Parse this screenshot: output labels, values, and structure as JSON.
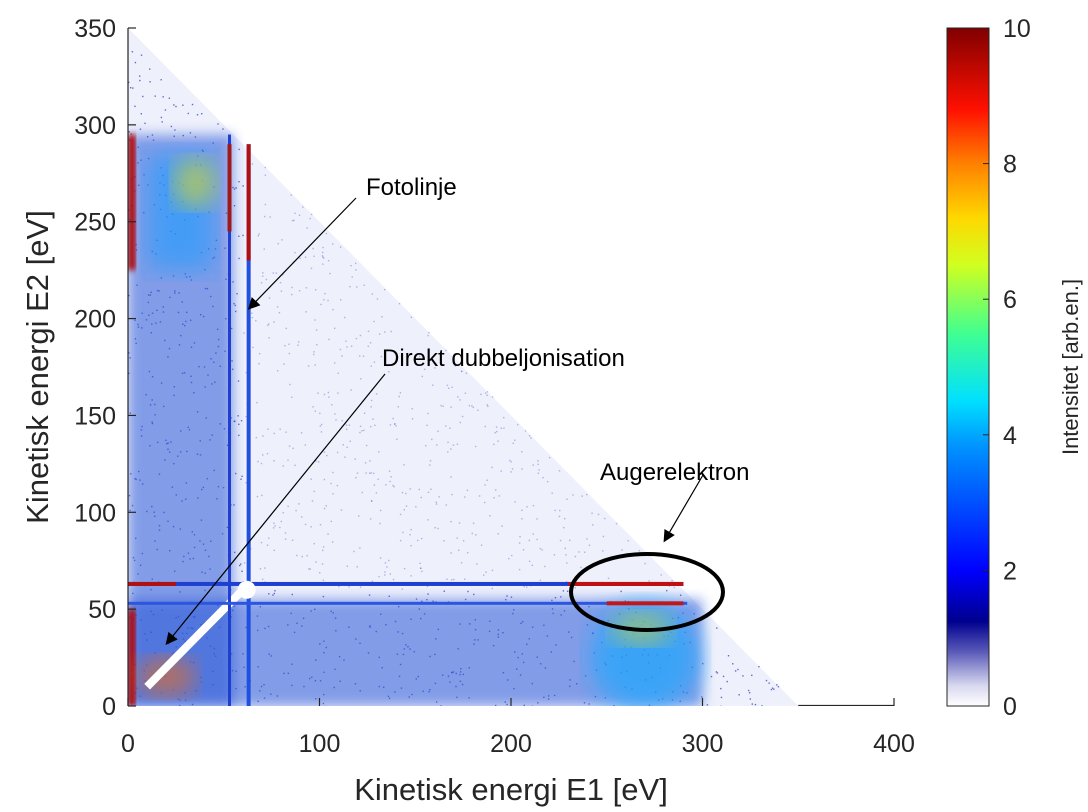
{
  "chart_data": {
    "type": "heatmap",
    "title": "",
    "xlabel": "Kinetisk energi E1 [eV]",
    "ylabel": "Kinetisk energi E2 [eV]",
    "xlim": [
      0,
      400
    ],
    "ylim": [
      0,
      350
    ],
    "x_ticks": [
      0,
      100,
      200,
      300,
      400
    ],
    "y_ticks": [
      0,
      50,
      100,
      150,
      200,
      250,
      300,
      350
    ],
    "grid": false,
    "colorbar": {
      "label": "Intensitet [arb.en.]",
      "range": [
        0,
        10
      ],
      "ticks": [
        0,
        2,
        4,
        6,
        8,
        10
      ],
      "colormap": "jet"
    },
    "features": {
      "diagonal_cutoff_sum_eV": 350,
      "photoline_E1_eV": [
        53,
        63
      ],
      "photoline_E2_eV": [
        53,
        63
      ],
      "auger_E_eV": [
        240,
        300
      ]
    },
    "annotations": [
      {
        "text": "Fotolinje",
        "points_to": [
          63,
          205
        ]
      },
      {
        "text": "Direkt dubbeljonisation",
        "points_to": [
          20,
          32
        ]
      },
      {
        "text": "Augerelektron",
        "points_to": [
          280,
          85
        ]
      }
    ]
  }
}
